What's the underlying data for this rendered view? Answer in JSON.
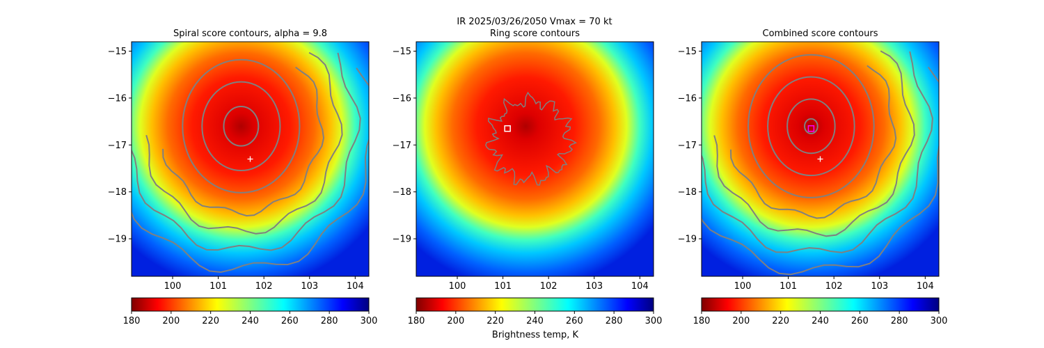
{
  "figure": {
    "suptitle": "IR  2025/03/26/2050    Vmax = 70 kt",
    "colorbar_label": "Brightness temp, K"
  },
  "chart_data": [
    {
      "type": "heatmap",
      "title": "Spiral score contours, alpha =  9.8",
      "xlim": [
        99.1,
        104.3
      ],
      "ylim": [
        -19.8,
        -14.8
      ],
      "xticks": [
        "100",
        "101",
        "102",
        "103",
        "104"
      ],
      "yticks": [
        "-15",
        "-16",
        "-17",
        "-18",
        "-19"
      ],
      "colorscale": {
        "name": "jet_r",
        "min": 180,
        "max": 300
      },
      "colorbar_ticks": [
        "180",
        "200",
        "220",
        "240",
        "260",
        "280",
        "300"
      ],
      "storm_center": [
        101.5,
        -16.6
      ],
      "eye_radius_deg": 0.3,
      "cdo_radius_deg": 2.3,
      "contour_color": "#808080",
      "contours": {
        "center": [
          101.5,
          -16.6
        ],
        "radii_deg": [
          0.4,
          0.9,
          1.35
        ],
        "arcs": [
          {
            "r": 1.85,
            "start": 0,
            "end": 190
          },
          {
            "r": 2.25,
            "start": 0,
            "end": 200
          },
          {
            "r": 2.65,
            "start": 10,
            "end": 200
          },
          {
            "r": 3.05,
            "start": 20,
            "end": 190
          }
        ]
      },
      "markers": [
        {
          "x": 101.7,
          "y": -17.3,
          "symbol": "+",
          "color": "#ffffff"
        }
      ]
    },
    {
      "type": "heatmap",
      "title": "Ring score contours",
      "xlim": [
        99.1,
        104.3
      ],
      "ylim": [
        -19.8,
        -14.8
      ],
      "xticks": [
        "100",
        "101",
        "102",
        "103",
        "104"
      ],
      "yticks": [
        "-15",
        "-16",
        "-17",
        "-18",
        "-19"
      ],
      "colorscale": {
        "name": "jet_r",
        "min": 180,
        "max": 300
      },
      "colorbar_ticks": [
        "180",
        "200",
        "220",
        "240",
        "260",
        "280",
        "300"
      ],
      "storm_center": [
        101.5,
        -16.6
      ],
      "eye_radius_deg": 0.3,
      "cdo_radius_deg": 2.3,
      "contour_color": "#808080",
      "ring_contour": {
        "center": [
          101.6,
          -16.9
        ],
        "rx_deg": 0.85,
        "ry_deg": 0.85
      },
      "markers": [
        {
          "x": 101.1,
          "y": -16.65,
          "symbol": "square",
          "color": "#ffffff"
        }
      ]
    },
    {
      "type": "heatmap",
      "title": "Combined score contours",
      "xlim": [
        99.1,
        104.3
      ],
      "ylim": [
        -19.8,
        -14.8
      ],
      "xticks": [
        "100",
        "101",
        "102",
        "103",
        "104"
      ],
      "yticks": [
        "-15",
        "-16",
        "-17",
        "-18",
        "-19"
      ],
      "colorscale": {
        "name": "jet_r",
        "min": 180,
        "max": 300
      },
      "colorbar_ticks": [
        "180",
        "200",
        "220",
        "240",
        "260",
        "280",
        "300"
      ],
      "storm_center": [
        101.5,
        -16.6
      ],
      "eye_radius_deg": 0.3,
      "cdo_radius_deg": 2.3,
      "contour_color": "#808080",
      "contours": {
        "center": [
          101.5,
          -16.6
        ],
        "radii_deg": [
          0.15,
          0.55,
          1.0,
          1.45
        ],
        "arcs": [
          {
            "r": 1.9,
            "start": 0,
            "end": 190
          },
          {
            "r": 2.3,
            "start": 0,
            "end": 200
          },
          {
            "r": 2.7,
            "start": 10,
            "end": 200
          },
          {
            "r": 3.1,
            "start": 20,
            "end": 190
          }
        ]
      },
      "markers": [
        {
          "x": 101.7,
          "y": -17.3,
          "symbol": "+",
          "color": "#ffffff"
        },
        {
          "x": 101.5,
          "y": -16.65,
          "symbol": "square",
          "color": "#ff00ff"
        }
      ]
    }
  ]
}
